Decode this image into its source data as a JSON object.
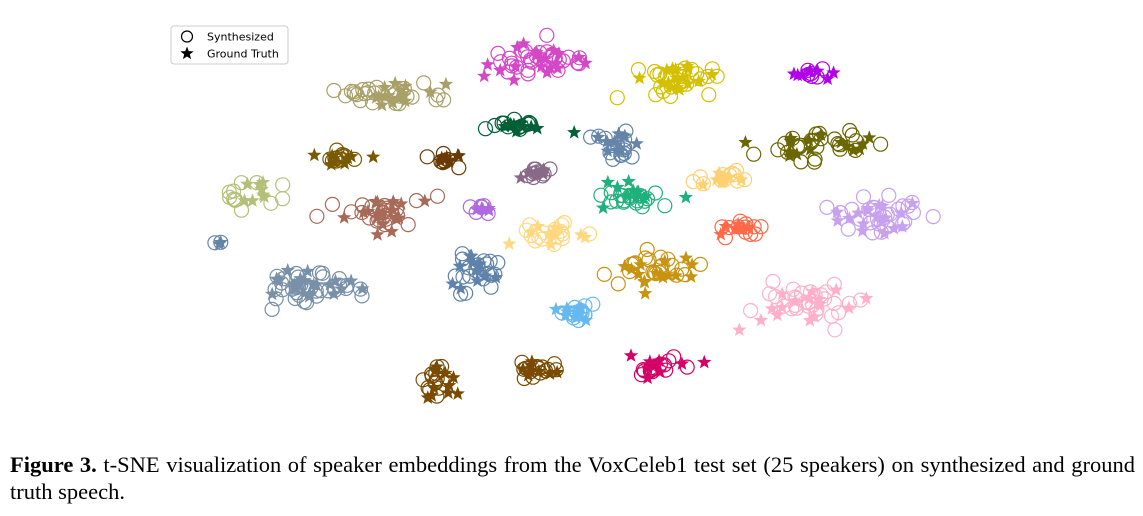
{
  "chart_data": {
    "type": "scatter",
    "title": "",
    "xlabel": "",
    "ylabel": "",
    "axes_visible": false,
    "grid": false,
    "legend_position": "top-left",
    "series": [
      {
        "name": "Synthesized",
        "marker": "open-circle"
      },
      {
        "name": "Ground Truth",
        "marker": "star"
      }
    ],
    "clusters": [
      {
        "color": "#d448c8",
        "x": 540,
        "y": 60,
        "sx": 32,
        "sy": 12,
        "n_synth": 30,
        "n_gt": 20
      },
      {
        "color": "#a8a068",
        "x": 388,
        "y": 92,
        "sx": 38,
        "sy": 10,
        "n_synth": 26,
        "n_gt": 16
      },
      {
        "color": "#d4c000",
        "x": 676,
        "y": 80,
        "sx": 28,
        "sy": 12,
        "n_synth": 26,
        "n_gt": 16
      },
      {
        "color": "#b000e8",
        "x": 813,
        "y": 73,
        "sx": 14,
        "sy": 4,
        "n_synth": 6,
        "n_gt": 8
      },
      {
        "color": "#005f36",
        "x": 520,
        "y": 126,
        "sx": 24,
        "sy": 3,
        "n_synth": 12,
        "n_gt": 10
      },
      {
        "color": "#6a6600",
        "x": 814,
        "y": 145,
        "sx": 38,
        "sy": 10,
        "n_synth": 26,
        "n_gt": 16
      },
      {
        "color": "#6485a8",
        "x": 620,
        "y": 146,
        "sx": 16,
        "sy": 9,
        "n_synth": 16,
        "n_gt": 10
      },
      {
        "color": "#7a5a00",
        "x": 338,
        "y": 158,
        "sx": 18,
        "sy": 5,
        "n_synth": 12,
        "n_gt": 8
      },
      {
        "color": "#6a3a00",
        "x": 450,
        "y": 160,
        "sx": 12,
        "sy": 5,
        "n_synth": 8,
        "n_gt": 8
      },
      {
        "color": "#886a88",
        "x": 538,
        "y": 172,
        "sx": 14,
        "sy": 6,
        "n_synth": 10,
        "n_gt": 8
      },
      {
        "color": "#ffd070",
        "x": 716,
        "y": 178,
        "sx": 18,
        "sy": 6,
        "n_synth": 12,
        "n_gt": 8
      },
      {
        "color": "#b4c078",
        "x": 240,
        "y": 192,
        "sx": 26,
        "sy": 12,
        "n_synth": 12,
        "n_gt": 8
      },
      {
        "color": "#20b07c",
        "x": 628,
        "y": 198,
        "sx": 22,
        "sy": 9,
        "n_synth": 18,
        "n_gt": 12
      },
      {
        "color": "#a86a58",
        "x": 385,
        "y": 212,
        "sx": 28,
        "sy": 12,
        "n_synth": 26,
        "n_gt": 16
      },
      {
        "color": "#b068e0",
        "x": 482,
        "y": 208,
        "sx": 8,
        "sy": 6,
        "n_synth": 6,
        "n_gt": 5
      },
      {
        "color": "#c8a0f0",
        "x": 878,
        "y": 216,
        "sx": 36,
        "sy": 12,
        "n_synth": 28,
        "n_gt": 18
      },
      {
        "color": "#ffd880",
        "x": 552,
        "y": 232,
        "sx": 22,
        "sy": 9,
        "n_synth": 16,
        "n_gt": 10
      },
      {
        "color": "#ff6848",
        "x": 740,
        "y": 227,
        "sx": 16,
        "sy": 7,
        "n_synth": 12,
        "n_gt": 8
      },
      {
        "color": "#6485a8",
        "x": 217,
        "y": 243,
        "sx": 5,
        "sy": 2,
        "n_synth": 2,
        "n_gt": 2
      },
      {
        "color": "#5e82aa",
        "x": 476,
        "y": 272,
        "sx": 16,
        "sy": 14,
        "n_synth": 20,
        "n_gt": 12
      },
      {
        "color": "#c89410",
        "x": 656,
        "y": 268,
        "sx": 32,
        "sy": 12,
        "n_synth": 22,
        "n_gt": 16
      },
      {
        "color": "#7890a8",
        "x": 312,
        "y": 284,
        "sx": 34,
        "sy": 14,
        "n_synth": 38,
        "n_gt": 22
      },
      {
        "color": "#ffb0c8",
        "x": 808,
        "y": 302,
        "sx": 40,
        "sy": 14,
        "n_synth": 30,
        "n_gt": 18
      },
      {
        "color": "#66b8f0",
        "x": 576,
        "y": 313,
        "sx": 16,
        "sy": 8,
        "n_synth": 14,
        "n_gt": 10
      },
      {
        "color": "#7a4a00",
        "x": 438,
        "y": 380,
        "sx": 13,
        "sy": 16,
        "n_synth": 14,
        "n_gt": 10
      },
      {
        "color": "#7a4a00",
        "x": 540,
        "y": 370,
        "sx": 16,
        "sy": 7,
        "n_synth": 14,
        "n_gt": 8
      },
      {
        "color": "#d40068",
        "x": 660,
        "y": 367,
        "sx": 18,
        "sy": 7,
        "n_synth": 14,
        "n_gt": 10
      }
    ]
  },
  "caption": {
    "label": "Figure 3.",
    "text": " t-SNE visualization of speaker embeddings from the VoxCeleb1 test set (25 speakers) on synthesized and ground truth speech."
  }
}
